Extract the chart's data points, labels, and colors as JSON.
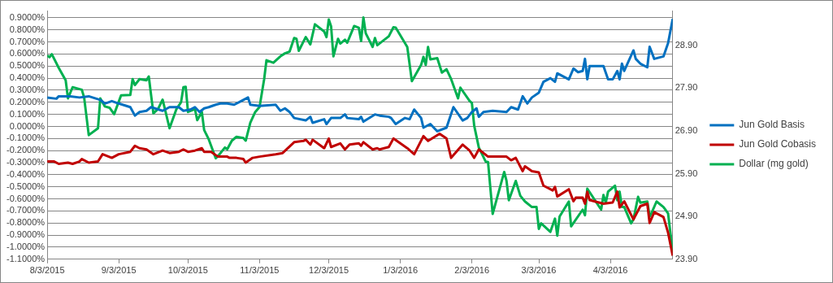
{
  "chart_data": {
    "type": "line",
    "legend": "right",
    "grid": "y",
    "marker": "none",
    "xlim": [
      "2015-08-03",
      "2016-04-30"
    ],
    "xticks": [
      {
        "value": "2015-08-03",
        "label": "8/3/2015"
      },
      {
        "value": "2015-09-03",
        "label": "9/3/2015"
      },
      {
        "value": "2015-10-03",
        "label": "10/3/2015"
      },
      {
        "value": "2015-11-03",
        "label": "11/3/2015"
      },
      {
        "value": "2015-12-03",
        "label": "12/3/2015"
      },
      {
        "value": "2016-01-03",
        "label": "1/3/2016"
      },
      {
        "value": "2016-02-03",
        "label": "2/3/2016"
      },
      {
        "value": "2016-03-03",
        "label": "3/3/2016"
      },
      {
        "value": "2016-04-03",
        "label": "4/3/2016"
      }
    ],
    "ylim": [
      -1.1,
      0.96
    ],
    "yticks": [
      {
        "value": 0.9,
        "label": "0.9000%"
      },
      {
        "value": 0.8,
        "label": "0.8000%"
      },
      {
        "value": 0.7,
        "label": "0.7000%"
      },
      {
        "value": 0.6,
        "label": "0.6000%"
      },
      {
        "value": 0.5,
        "label": "0.5000%"
      },
      {
        "value": 0.4,
        "label": "0.4000%"
      },
      {
        "value": 0.3,
        "label": "0.3000%"
      },
      {
        "value": 0.2,
        "label": "0.2000%"
      },
      {
        "value": 0.1,
        "label": "0.1000%"
      },
      {
        "value": 0,
        "label": "0.0000%"
      },
      {
        "value": -0.1,
        "label": "-0.1000%"
      },
      {
        "value": -0.2,
        "label": "-0.2000%"
      },
      {
        "value": -0.3,
        "label": "-0.3000%"
      },
      {
        "value": -0.4,
        "label": "-0.4000%"
      },
      {
        "value": -0.5,
        "label": "-0.5000%"
      },
      {
        "value": -0.6,
        "label": "-0.6000%"
      },
      {
        "value": -0.7,
        "label": "-0.7000%"
      },
      {
        "value": -0.8,
        "label": "-0.8000%"
      },
      {
        "value": -0.9,
        "label": "-0.9000%"
      },
      {
        "value": -1.0,
        "label": "-1.0000%"
      },
      {
        "value": -1.1,
        "label": "-1.1000%"
      }
    ],
    "y2lim": [
      23.9,
      29.71
    ],
    "y2ticks": [
      {
        "value": 23.9,
        "label": "23.90"
      },
      {
        "value": 24.9,
        "label": "24.90"
      },
      {
        "value": 25.9,
        "label": "25.90"
      },
      {
        "value": 26.9,
        "label": "26.90"
      },
      {
        "value": 27.9,
        "label": "27.90"
      },
      {
        "value": 28.9,
        "label": "28.90"
      }
    ],
    "series": [
      {
        "name": "Jun Gold Basis",
        "color": "#0070c0",
        "x": [
          "2015-08-03",
          "2015-08-07",
          "2015-08-08",
          "2015-08-13",
          "2015-08-17",
          "2015-08-21",
          "2015-08-26",
          "2015-08-28",
          "2015-08-31",
          "2015-09-03",
          "2015-09-08",
          "2015-09-10",
          "2015-09-12",
          "2015-09-15",
          "2015-09-17",
          "2015-09-22",
          "2015-09-25",
          "2015-09-29",
          "2015-10-01",
          "2015-10-04",
          "2015-10-06",
          "2015-10-08",
          "2015-10-10",
          "2015-10-12",
          "2015-10-15",
          "2015-10-17",
          "2015-10-20",
          "2015-10-23",
          "2015-10-26",
          "2015-10-29",
          "2015-10-30",
          "2015-11-03",
          "2015-11-10",
          "2015-11-12",
          "2015-11-14",
          "2015-11-16",
          "2015-11-18",
          "2015-11-23",
          "2015-11-25",
          "2015-11-26",
          "2015-12-01",
          "2015-12-02",
          "2015-12-04",
          "2015-12-08",
          "2015-12-10",
          "2015-12-11",
          "2015-12-16",
          "2015-12-17",
          "2015-12-18",
          "2015-12-23",
          "2015-12-25",
          "2015-12-29",
          "2015-12-30",
          "2016-01-01",
          "2016-01-05",
          "2016-01-07",
          "2016-01-09",
          "2016-01-12",
          "2016-01-13",
          "2016-01-16",
          "2016-01-19",
          "2016-01-23",
          "2016-01-26",
          "2016-01-30",
          "2016-02-01",
          "2016-02-03",
          "2016-02-05",
          "2016-02-06",
          "2016-02-08",
          "2016-02-12",
          "2016-02-18",
          "2016-02-20",
          "2016-02-23",
          "2016-02-25",
          "2016-02-27",
          "2016-02-29",
          "2016-03-03",
          "2016-03-05",
          "2016-03-08",
          "2016-03-10",
          "2016-03-11",
          "2016-03-16",
          "2016-03-18",
          "2016-03-20",
          "2016-03-22",
          "2016-03-23",
          "2016-03-24",
          "2016-03-25",
          "2016-03-31",
          "2016-04-02",
          "2016-04-04",
          "2016-04-06",
          "2016-04-07",
          "2016-04-08",
          "2016-04-09",
          "2016-04-13",
          "2016-04-14",
          "2016-04-16",
          "2016-04-19",
          "2016-04-20",
          "2016-04-22",
          "2016-04-26",
          "2016-04-28",
          "2016-04-30"
        ],
        "values": [
          0.24,
          0.23,
          0.25,
          0.25,
          0.24,
          0.25,
          0.22,
          0.19,
          0.21,
          0.19,
          0.16,
          0.09,
          0.12,
          0.13,
          0.16,
          0.13,
          0.16,
          0.16,
          0.13,
          0.14,
          0.16,
          0.12,
          0.15,
          0.16,
          0.18,
          0.19,
          0.19,
          0.18,
          0.21,
          0.24,
          0.18,
          0.17,
          0.18,
          0.13,
          0.15,
          0.12,
          0.07,
          0.05,
          0.08,
          0.03,
          0.06,
          0.02,
          0.07,
          0.07,
          0.1,
          0.07,
          0.06,
          0.08,
          0.04,
          0.1,
          0.09,
          0.08,
          0.07,
          0.02,
          0.07,
          0.06,
          0.14,
          0.07,
          -0.01,
          0.02,
          -0.04,
          -0.01,
          0.16,
          0.05,
          0.07,
          0.12,
          0.15,
          0.08,
          0.12,
          0.13,
          0.12,
          0.16,
          0.14,
          0.25,
          0.19,
          0.24,
          0.28,
          0.37,
          0.4,
          0.37,
          0.44,
          0.39,
          0.48,
          0.45,
          0.46,
          0.56,
          0.39,
          0.5,
          0.5,
          0.39,
          0.39,
          0.46,
          0.39,
          0.52,
          0.46,
          0.63,
          0.56,
          0.52,
          0.49,
          0.66,
          0.56,
          0.58,
          0.69,
          0.89
        ]
      },
      {
        "name": "Jun Gold Cobasis",
        "color": "#c00000",
        "x": [
          "2015-08-03",
          "2015-08-06",
          "2015-08-08",
          "2015-08-12",
          "2015-08-14",
          "2015-08-17",
          "2015-08-18",
          "2015-08-21",
          "2015-08-25",
          "2015-08-27",
          "2015-08-31",
          "2015-09-03",
          "2015-09-08",
          "2015-09-10",
          "2015-09-12",
          "2015-09-15",
          "2015-09-18",
          "2015-09-22",
          "2015-09-25",
          "2015-09-29",
          "2015-10-01",
          "2015-10-03",
          "2015-10-06",
          "2015-10-09",
          "2015-10-10",
          "2015-10-13",
          "2015-10-16",
          "2015-10-20",
          "2015-10-21",
          "2015-10-24",
          "2015-10-27",
          "2015-10-28",
          "2015-10-31",
          "2015-11-03",
          "2015-11-10",
          "2015-11-13",
          "2015-11-18",
          "2015-11-22",
          "2015-11-23",
          "2015-11-25",
          "2015-11-26",
          "2015-12-01",
          "2015-12-03",
          "2015-12-04",
          "2015-12-08",
          "2015-12-10",
          "2015-12-12",
          "2015-12-16",
          "2015-12-17",
          "2015-12-18",
          "2015-12-22",
          "2015-12-24",
          "2015-12-25",
          "2015-12-29",
          "2015-12-31",
          "2016-01-03",
          "2016-01-06",
          "2016-01-09",
          "2016-01-13",
          "2016-01-15",
          "2016-01-20",
          "2016-01-23",
          "2016-01-25",
          "2016-01-30",
          "2016-02-02",
          "2016-02-04",
          "2016-02-06",
          "2016-02-10",
          "2016-02-18",
          "2016-02-20",
          "2016-02-22",
          "2016-02-25",
          "2016-02-26",
          "2016-02-29",
          "2016-03-03",
          "2016-03-05",
          "2016-03-09",
          "2016-03-10",
          "2016-03-11",
          "2016-03-16",
          "2016-03-18",
          "2016-03-19",
          "2016-03-22",
          "2016-03-23",
          "2016-03-24",
          "2016-03-25",
          "2016-03-31",
          "2016-04-04",
          "2016-04-06",
          "2016-04-07",
          "2016-04-09",
          "2016-04-13",
          "2016-04-16",
          "2016-04-19",
          "2016-04-20",
          "2016-04-22",
          "2016-04-26",
          "2016-04-28",
          "2016-04-30"
        ],
        "values": [
          -0.29,
          -0.29,
          -0.31,
          -0.3,
          -0.31,
          -0.29,
          -0.27,
          -0.3,
          -0.29,
          -0.23,
          -0.26,
          -0.23,
          -0.21,
          -0.16,
          -0.18,
          -0.19,
          -0.23,
          -0.2,
          -0.22,
          -0.21,
          -0.19,
          -0.21,
          -0.2,
          -0.18,
          -0.21,
          -0.21,
          -0.25,
          -0.25,
          -0.26,
          -0.26,
          -0.27,
          -0.3,
          -0.26,
          -0.25,
          -0.23,
          -0.22,
          -0.13,
          -0.12,
          -0.11,
          -0.15,
          -0.11,
          -0.18,
          -0.1,
          -0.17,
          -0.14,
          -0.19,
          -0.15,
          -0.14,
          -0.16,
          -0.13,
          -0.19,
          -0.18,
          -0.19,
          -0.17,
          -0.1,
          -0.14,
          -0.18,
          -0.23,
          -0.08,
          -0.12,
          -0.06,
          -0.1,
          -0.26,
          -0.15,
          -0.2,
          -0.26,
          -0.19,
          -0.25,
          -0.25,
          -0.28,
          -0.26,
          -0.37,
          -0.33,
          -0.37,
          -0.38,
          -0.49,
          -0.53,
          -0.5,
          -0.58,
          -0.52,
          -0.62,
          -0.59,
          -0.59,
          -0.64,
          -0.54,
          -0.61,
          -0.64,
          -0.63,
          -0.54,
          -0.67,
          -0.62,
          -0.77,
          -0.66,
          -0.64,
          -0.8,
          -0.71,
          -0.75,
          -0.88,
          -1.07
        ]
      },
      {
        "name": "Dollar (mg gold)",
        "color": "#00b050",
        "axis": "y2",
        "x": [
          "2015-08-03",
          "2015-08-04",
          "2015-08-05",
          "2015-08-08",
          "2015-08-11",
          "2015-08-12",
          "2015-08-14",
          "2015-08-18",
          "2015-08-19",
          "2015-08-21",
          "2015-08-25",
          "2015-08-26",
          "2015-08-28",
          "2015-08-30",
          "2015-09-01",
          "2015-09-04",
          "2015-09-08",
          "2015-09-09",
          "2015-09-10",
          "2015-09-12",
          "2015-09-15",
          "2015-09-16",
          "2015-09-18",
          "2015-09-20",
          "2015-09-22",
          "2015-09-25",
          "2015-09-28",
          "2015-09-30",
          "2015-10-01",
          "2015-10-02",
          "2015-10-03",
          "2015-10-06",
          "2015-10-07",
          "2015-10-09",
          "2015-10-10",
          "2015-10-12",
          "2015-10-15",
          "2015-10-16",
          "2015-10-19",
          "2015-10-20",
          "2015-10-21",
          "2015-10-22",
          "2015-10-24",
          "2015-10-27",
          "2015-10-28",
          "2015-10-30",
          "2015-11-01",
          "2015-11-03",
          "2015-11-05",
          "2015-11-06",
          "2015-11-09",
          "2015-11-12",
          "2015-11-14",
          "2015-11-16",
          "2015-11-18",
          "2015-11-19",
          "2015-11-20",
          "2015-11-23",
          "2015-11-25",
          "2015-11-27",
          "2015-12-01",
          "2015-12-02",
          "2015-12-03",
          "2015-12-04",
          "2015-12-05",
          "2015-12-07",
          "2015-12-08",
          "2015-12-10",
          "2015-12-11",
          "2015-12-14",
          "2015-12-16",
          "2015-12-17",
          "2015-12-18",
          "2015-12-19",
          "2015-12-22",
          "2015-12-23",
          "2015-12-24",
          "2015-12-29",
          "2015-12-31",
          "2016-01-01",
          "2016-01-06",
          "2016-01-08",
          "2016-01-12",
          "2016-01-13",
          "2016-01-14",
          "2016-01-15",
          "2016-01-16",
          "2016-01-19",
          "2016-01-21",
          "2016-01-23",
          "2016-01-25",
          "2016-01-28",
          "2016-01-29",
          "2016-02-02",
          "2016-02-03",
          "2016-02-04",
          "2016-02-06",
          "2016-02-09",
          "2016-02-10",
          "2016-02-12",
          "2016-02-17",
          "2016-02-18",
          "2016-02-19",
          "2016-02-22",
          "2016-02-24",
          "2016-02-26",
          "2016-02-29",
          "2016-03-02",
          "2016-03-03",
          "2016-03-04",
          "2016-03-08",
          "2016-03-10",
          "2016-03-11",
          "2016-03-12",
          "2016-03-16",
          "2016-03-17",
          "2016-03-22",
          "2016-03-23",
          "2016-03-24",
          "2016-03-30",
          "2016-03-31",
          "2016-04-01",
          "2016-04-02",
          "2016-04-05",
          "2016-04-06",
          "2016-04-07",
          "2016-04-08",
          "2016-04-09",
          "2016-04-12",
          "2016-04-13",
          "2016-04-15",
          "2016-04-16",
          "2016-04-19",
          "2016-04-20",
          "2016-04-21",
          "2016-04-23",
          "2016-04-26",
          "2016-04-28",
          "2016-04-30"
        ],
        "values": [
          28.66,
          28.62,
          28.69,
          28.37,
          28.08,
          27.66,
          27.92,
          27.86,
          27.68,
          26.8,
          26.96,
          27.66,
          27.47,
          27.44,
          27.29,
          27.73,
          27.74,
          28.11,
          27.97,
          28.11,
          28.08,
          28.17,
          27.31,
          27.41,
          27.63,
          26.96,
          27.41,
          27.57,
          27.92,
          27.93,
          27.34,
          27.41,
          27.15,
          27.34,
          26.92,
          26.7,
          26.26,
          26.31,
          26.51,
          26.47,
          26.57,
          26.67,
          26.76,
          26.73,
          26.67,
          27.09,
          27.33,
          27.46,
          28.11,
          28.55,
          28.49,
          28.64,
          28.71,
          28.75,
          29.07,
          29.05,
          28.77,
          29.09,
          28.92,
          29.39,
          29.22,
          29.09,
          29.5,
          29.34,
          28.64,
          29.05,
          28.94,
          29.03,
          28.96,
          29.35,
          29.31,
          29.0,
          29.55,
          29.18,
          28.86,
          29.07,
          28.9,
          29.11,
          29.32,
          29.31,
          28.86,
          28.06,
          28.44,
          28.63,
          28.44,
          28.86,
          28.57,
          28.6,
          28.26,
          28.34,
          28.11,
          27.66,
          27.91,
          27.6,
          27.55,
          27.02,
          26.51,
          26.18,
          26.17,
          24.96,
          25.94,
          25.73,
          25.28,
          25.73,
          25.38,
          25.25,
          25.12,
          25.12,
          24.61,
          24.74,
          24.54,
          24.85,
          24.45,
          24.9,
          25.25,
          24.67,
          25.06,
          24.93,
          25.55,
          25.06,
          25.4,
          25.22,
          25.48,
          25.62,
          25.28,
          25.48,
          25.12,
          25.12,
          24.74,
          24.83,
          25.36,
          25.22,
          25.25,
          24.9,
          25.0,
          25.25,
          25.12,
          24.97,
          24.06
        ]
      }
    ]
  }
}
